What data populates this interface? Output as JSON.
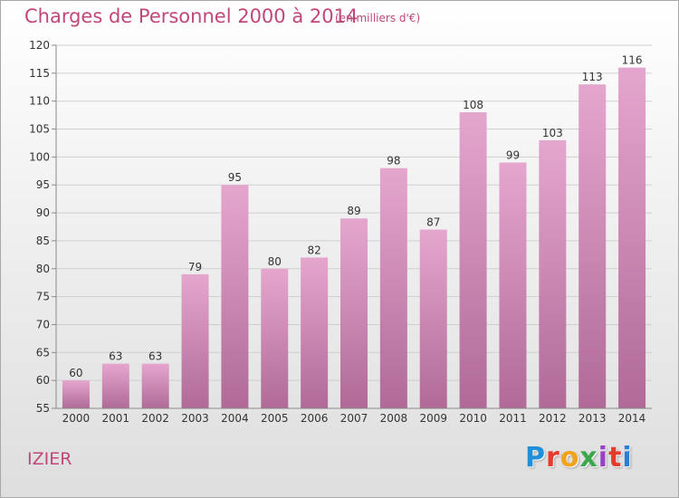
{
  "header": {
    "title": "Charges de Personnel 2000 à 2014",
    "unit": "(en milliers d'€)"
  },
  "footer": {
    "town": "IZIER",
    "logo_letters": [
      "P",
      "r",
      "o",
      "x",
      "i",
      "t",
      "i"
    ],
    "logo_colors": [
      "#1e8fd8",
      "#e53b2c",
      "#f2a21b",
      "#3aa84a",
      "#9b3fc4",
      "#e53b2c",
      "#2a7fd4"
    ]
  },
  "colors": {
    "bar_top": "#e5a6ce",
    "bar_bottom": "#b06a98",
    "text_accent": "#c0477a",
    "grid": "#cfcfcf",
    "axis": "#8a8a8a"
  },
  "chart_data": {
    "type": "bar",
    "categories": [
      "2000",
      "2001",
      "2002",
      "2003",
      "2004",
      "2005",
      "2006",
      "2007",
      "2008",
      "2009",
      "2010",
      "2011",
      "2012",
      "2013",
      "2014"
    ],
    "values": [
      60,
      63,
      63,
      79,
      95,
      80,
      82,
      89,
      98,
      87,
      108,
      99,
      103,
      113,
      116
    ],
    "data_labels": [
      "60",
      "63",
      "63",
      "79",
      "95",
      "80",
      "82",
      "89",
      "98",
      "87",
      "108",
      "99",
      "103",
      "113",
      "116"
    ],
    "ylim": [
      55,
      120
    ],
    "yticks": [
      55,
      60,
      65,
      70,
      75,
      80,
      85,
      90,
      95,
      100,
      105,
      110,
      115,
      120
    ],
    "ytick_labels": [
      "55",
      "60",
      "65",
      "70",
      "75",
      "80",
      "85",
      "90",
      "95",
      "100",
      "105",
      "110",
      "115",
      "120"
    ],
    "grid": true
  }
}
